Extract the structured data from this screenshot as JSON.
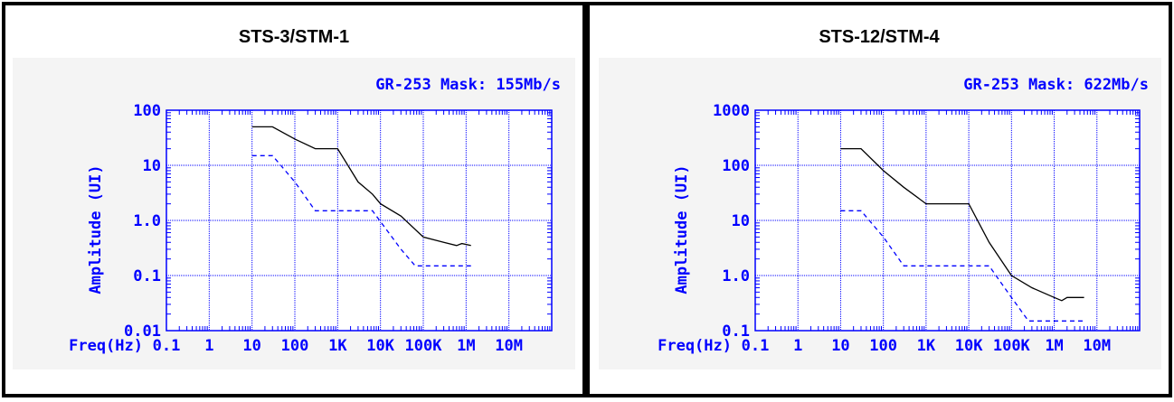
{
  "colors": {
    "grid": "#0000ff",
    "axis_text": "#0000ff",
    "mask_line": "#000000",
    "dashed_line": "#0000ff",
    "plot_bg": "#f4f4f4"
  },
  "chart_data": [
    {
      "type": "line",
      "title": "STS-3/STM-1",
      "subtitle": "GR-253 Mask: 155Mb/s",
      "xlabel": "Freq(Hz)",
      "ylabel": "Amplitude (UI)",
      "x_scale": "log",
      "y_scale": "log",
      "xlim": [
        0.1,
        100000000
      ],
      "ylim": [
        0.01,
        100
      ],
      "x_ticks": [
        0.1,
        1,
        10,
        100,
        1000,
        10000,
        100000,
        1000000,
        10000000
      ],
      "x_tick_labels": [
        "0.1",
        "1",
        "10",
        "100",
        "1K",
        "10K",
        "100K",
        "1M",
        "10M"
      ],
      "y_ticks": [
        0.01,
        0.1,
        1,
        10,
        100
      ],
      "y_tick_labels": [
        "0.01",
        "0.1",
        "1.0",
        "10",
        "100"
      ],
      "grid": true,
      "series": [
        {
          "style": "solid",
          "color": "#000000",
          "x": [
            10,
            30,
            100,
            300,
            1000,
            3000,
            6500,
            10000,
            30000,
            100000,
            300000,
            600000,
            800000,
            1300000
          ],
          "y": [
            50,
            50,
            30,
            20,
            20,
            5,
            3,
            2,
            1.2,
            0.5,
            0.4,
            0.35,
            0.38,
            0.35
          ]
        },
        {
          "style": "dashed",
          "color": "#0000ff",
          "x": [
            10,
            30,
            100,
            300,
            1000,
            3000,
            6500,
            30000,
            65000,
            1300000
          ],
          "y": [
            15,
            15,
            5,
            1.5,
            1.5,
            1.5,
            1.5,
            0.3,
            0.15,
            0.15
          ]
        }
      ]
    },
    {
      "type": "line",
      "title": "STS-12/STM-4",
      "subtitle": "GR-253 Mask: 622Mb/s",
      "xlabel": "Freq(Hz)",
      "ylabel": "Amplitude (UI)",
      "x_scale": "log",
      "y_scale": "log",
      "xlim": [
        0.1,
        100000000
      ],
      "ylim": [
        0.1,
        1000
      ],
      "x_ticks": [
        0.1,
        1,
        10,
        100,
        1000,
        10000,
        100000,
        1000000,
        10000000
      ],
      "x_tick_labels": [
        "0.1",
        "1",
        "10",
        "100",
        "1K",
        "10K",
        "100K",
        "1M",
        "10M"
      ],
      "y_ticks": [
        0.1,
        1,
        10,
        100,
        1000
      ],
      "y_tick_labels": [
        "0.1",
        "1.0",
        "10",
        "100",
        "1000"
      ],
      "grid": true,
      "series": [
        {
          "style": "solid",
          "color": "#000000",
          "x": [
            10,
            30,
            100,
            300,
            1000,
            3000,
            10000,
            30000,
            100000,
            300000,
            1000000,
            1500000,
            2000000,
            5000000
          ],
          "y": [
            200,
            200,
            80,
            40,
            20,
            20,
            20,
            4,
            1,
            0.6,
            0.4,
            0.35,
            0.4,
            0.4
          ]
        },
        {
          "style": "dashed",
          "color": "#0000ff",
          "x": [
            10,
            30,
            100,
            300,
            1000,
            3000,
            10000,
            30000,
            100000,
            250000,
            5000000
          ],
          "y": [
            15,
            15,
            5,
            1.5,
            1.5,
            1.5,
            1.5,
            1.5,
            0.4,
            0.15,
            0.15
          ]
        }
      ]
    }
  ]
}
